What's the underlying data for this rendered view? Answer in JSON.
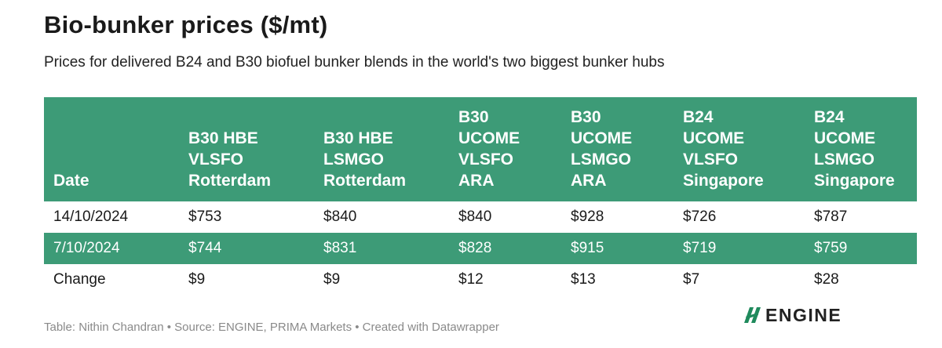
{
  "title": "Bio-bunker prices ($/mt)",
  "subtitle": "Prices for delivered B24 and B30 biofuel bunker blends in the world's two biggest bunker hubs",
  "footer": "Table: Nithin Chandran • Source: ENGINE, PRIMA Markets • Created with Datawrapper",
  "logo": {
    "text": "ENGINE",
    "icon": "engine-logo-icon",
    "color": "#1f8a5c"
  },
  "colors": {
    "header_bg": "#3d9b77",
    "alt_row_bg": "#3d9b77",
    "header_text": "#ffffff"
  },
  "chart_data": {
    "type": "table",
    "title": "Bio-bunker prices ($/mt)",
    "subtitle": "Prices for delivered B24 and B30 biofuel bunker blends in the world's two biggest bunker hubs",
    "columns": [
      {
        "lines": [
          "Date"
        ]
      },
      {
        "lines": [
          "B30 HBE",
          "VLSFO",
          "Rotterdam"
        ]
      },
      {
        "lines": [
          "B30 HBE",
          "LSMGO",
          "Rotterdam"
        ]
      },
      {
        "lines": [
          "B30",
          "UCOME",
          "VLSFO",
          "ARA"
        ]
      },
      {
        "lines": [
          "B30",
          "UCOME",
          "LSMGO",
          "ARA"
        ]
      },
      {
        "lines": [
          "B24",
          "UCOME",
          "VLSFO",
          "Singapore"
        ]
      },
      {
        "lines": [
          "B24",
          "UCOME",
          "LSMGO",
          "Singapore"
        ]
      }
    ],
    "rows": [
      [
        "14/10/2024",
        "$753",
        "$840",
        "$840",
        "$928",
        "$726",
        "$787"
      ],
      [
        "7/10/2024",
        "$744",
        "$831",
        "$828",
        "$915",
        "$719",
        "$759"
      ],
      [
        "Change",
        "$9",
        "$9",
        "$12",
        "$13",
        "$7",
        "$28"
      ]
    ]
  }
}
